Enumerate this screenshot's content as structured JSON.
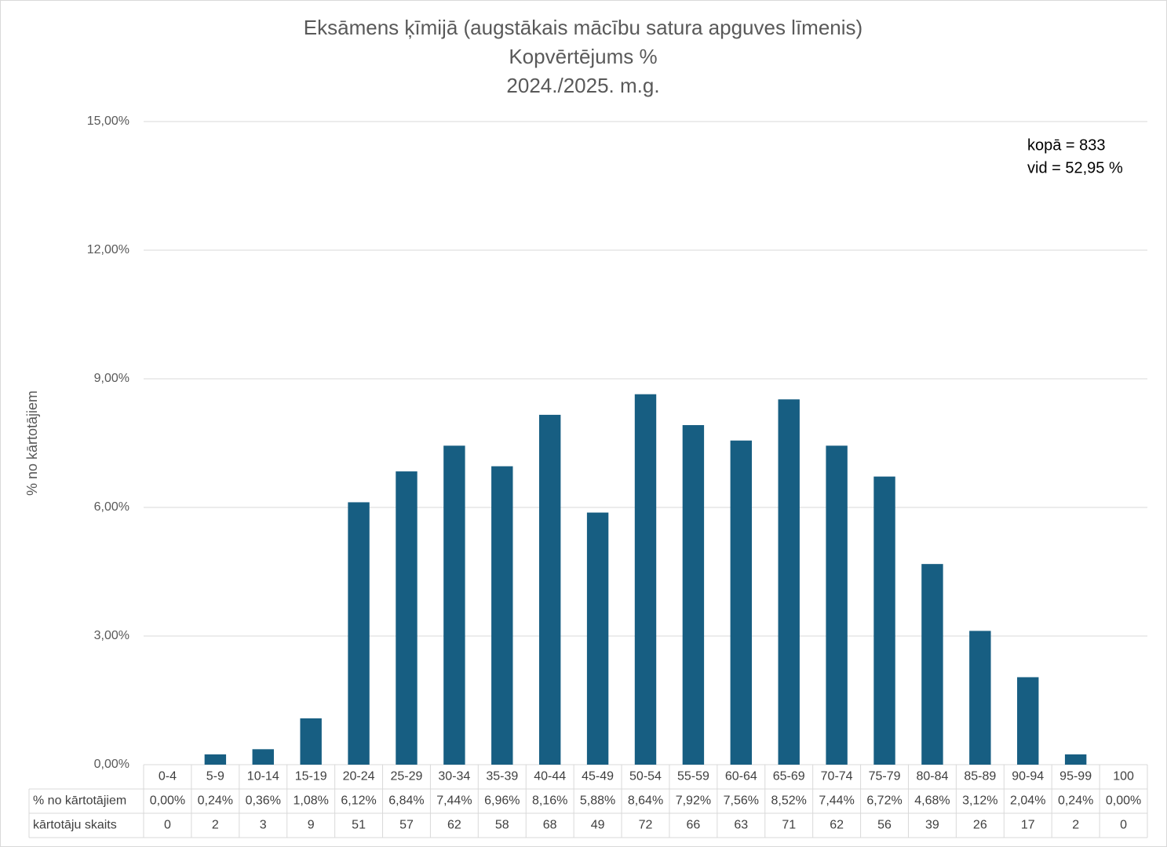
{
  "chart_data": {
    "type": "bar",
    "title": [
      "Eksāmens ķīmijā (augstākais mācību satura apguves līmenis)",
      "Kopvērtējums %",
      "2024./2025. m.g."
    ],
    "y_label": "% no kārtotājiem",
    "annotations": [
      "kopā = 833",
      "vid = 52,95 %"
    ],
    "categories": [
      "0-4",
      "5-9",
      "10-14",
      "15-19",
      "20-24",
      "25-29",
      "30-34",
      "35-39",
      "40-44",
      "45-49",
      "50-54",
      "55-59",
      "60-64",
      "65-69",
      "70-74",
      "75-79",
      "80-84",
      "85-89",
      "90-94",
      "95-99",
      "100"
    ],
    "series": [
      {
        "name": "% no kārtotājiem",
        "color": "#175e82",
        "values": [
          0,
          0.24,
          0.36,
          1.08,
          6.12,
          6.84,
          7.44,
          6.96,
          8.16,
          5.88,
          8.64,
          7.92,
          7.56,
          8.52,
          7.44,
          6.72,
          4.68,
          3.12,
          2.04,
          0.24,
          0
        ],
        "value_labels": [
          "0,00%",
          "0,24%",
          "0,36%",
          "1,08%",
          "6,12%",
          "6,84%",
          "7,44%",
          "6,96%",
          "8,16%",
          "5,88%",
          "8,64%",
          "7,92%",
          "7,56%",
          "8,52%",
          "7,44%",
          "6,72%",
          "4,68%",
          "3,12%",
          "2,04%",
          "0,24%",
          "0,00%"
        ]
      }
    ],
    "table_rows": [
      {
        "name": "kārtotāju skaits",
        "values": [
          0,
          2,
          3,
          9,
          51,
          57,
          62,
          58,
          68,
          49,
          72,
          66,
          63,
          71,
          62,
          56,
          39,
          26,
          17,
          2,
          0
        ]
      }
    ],
    "ylim": [
      0,
      15
    ],
    "yticks": [
      {
        "value": 0,
        "label": "0,00%"
      },
      {
        "value": 3,
        "label": "3,00%"
      },
      {
        "value": 6,
        "label": "6,00%"
      },
      {
        "value": 9,
        "label": "9,00%"
      },
      {
        "value": 12,
        "label": "12,00%"
      },
      {
        "value": 15,
        "label": "15,00%"
      }
    ],
    "grid": true
  }
}
